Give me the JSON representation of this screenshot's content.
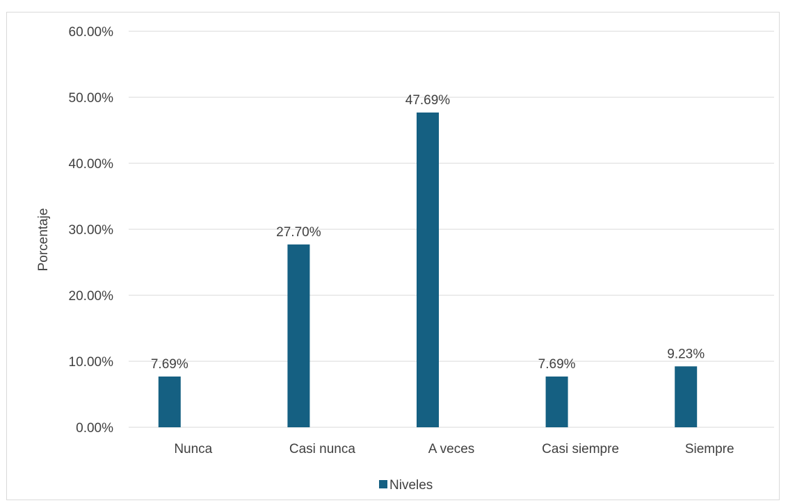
{
  "chart_data": {
    "type": "bar",
    "categories": [
      "Nunca",
      "Casi nunca",
      "A veces",
      "Casi siempre",
      "Siempre"
    ],
    "series": [
      {
        "name": "Niveles",
        "values": [
          7.69,
          27.7,
          47.69,
          7.69,
          9.23
        ],
        "value_labels": [
          "7.69%",
          "27.70%",
          "47.69%",
          "7.69%",
          "9.23%"
        ]
      }
    ],
    "ylabel": "Porcentaje",
    "xlabel": "",
    "ylim": [
      0,
      60
    ],
    "yticks": [
      0,
      10,
      20,
      30,
      40,
      50,
      60
    ],
    "ytick_labels": [
      "0.00%",
      "10.00%",
      "20.00%",
      "30.00%",
      "40.00%",
      "50.00%",
      "60.00%"
    ],
    "grid": true,
    "legend_position": "bottom",
    "colors": {
      "bar": "#156082",
      "grid": "#d9d9d9",
      "text": "#404040"
    }
  }
}
